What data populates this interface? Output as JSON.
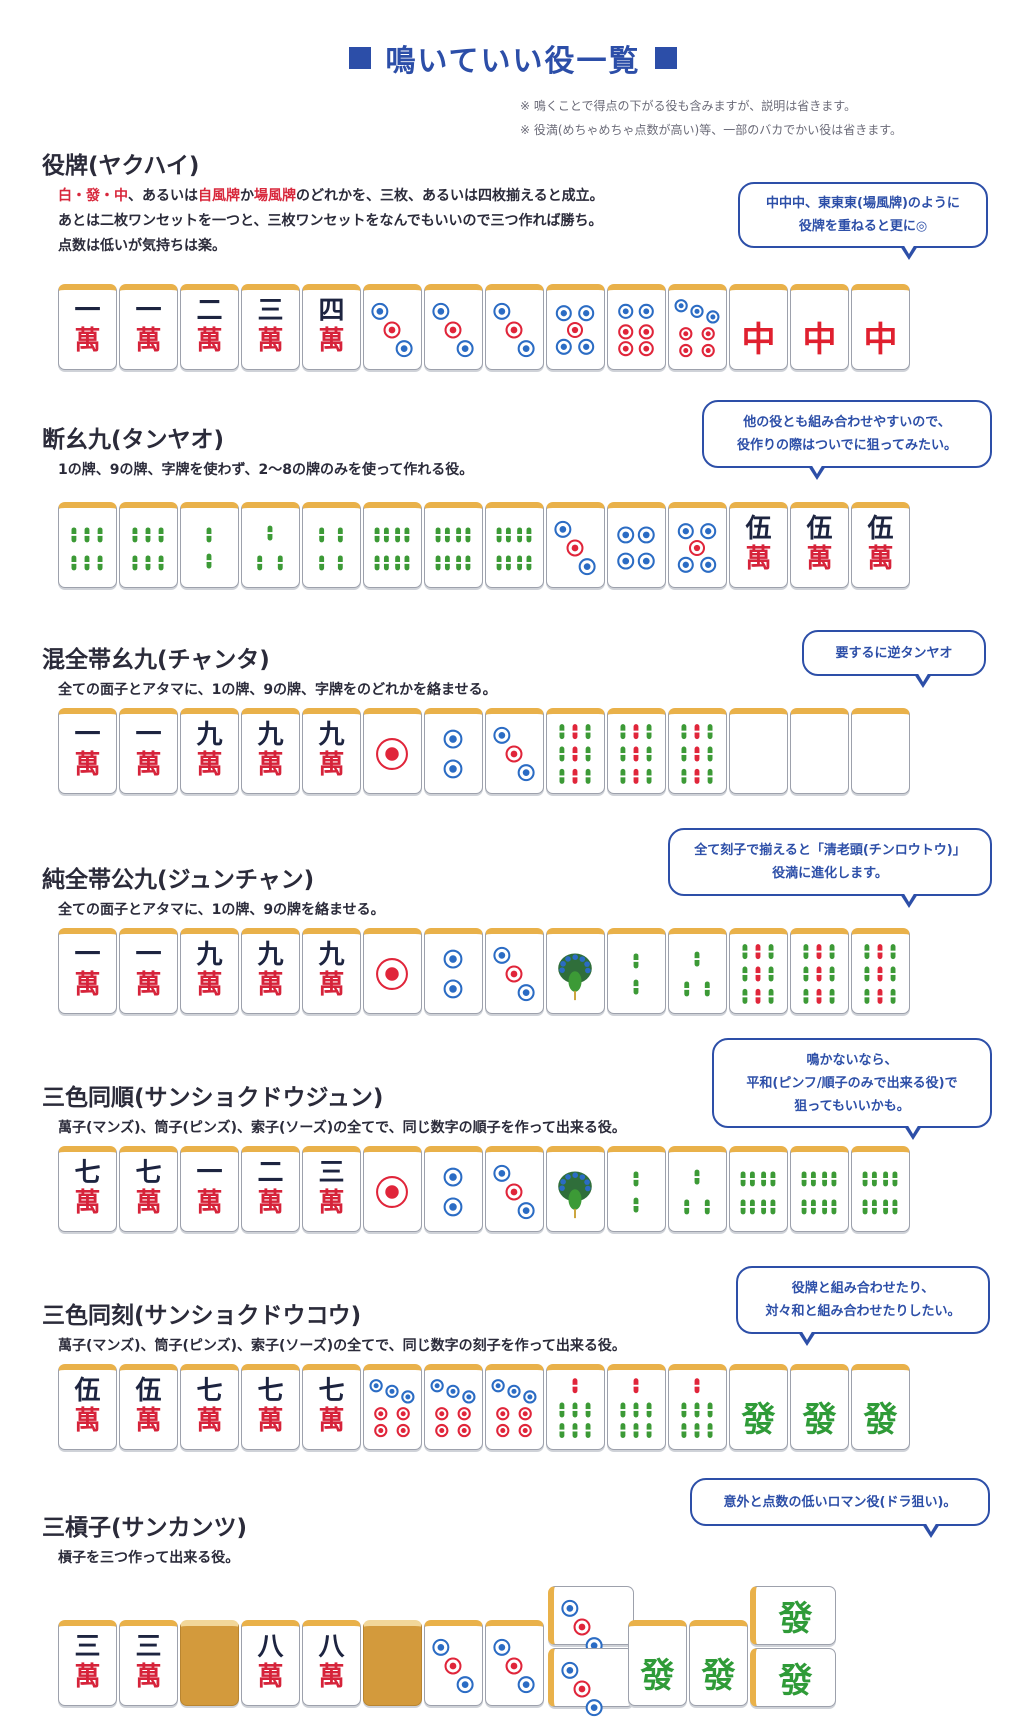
{
  "page": {
    "title": "鳴いていい役一覧",
    "notes": [
      "※ 鳴くことで得点の下がる役も含みますが、説明は省きます。",
      "※ 役満(めちゃめちゃ点数が高い)等、一部のバカでかい役は省きます。"
    ]
  },
  "sections": [
    {
      "title": "役牌(ヤクハイ)",
      "desc_line1_parts": [
        "白・發・中",
        "、あるいは",
        "自風牌",
        "か",
        "場風牌",
        "のどれかを、三枚、あるいは四枚揃えると成立。"
      ],
      "desc_line2": "あとは二枚ワンセットを一つと、三枚ワンセットをなんでもいいので三つ作れば勝ち。",
      "desc_line3": "点数は低いが気持ちは楽。",
      "bubble": [
        "中中中、東東東(場風牌)のように",
        "役牌を重ねると更に◎"
      ],
      "tiles": [
        "m1",
        "m1",
        "m2",
        "m3",
        "m4",
        "p3",
        "p3",
        "p3",
        "p5",
        "p6",
        "p7",
        "chun",
        "chun",
        "chun"
      ]
    },
    {
      "title": "断幺九(タンヤオ)",
      "desc": "1の牌、9の牌、字牌を使わず、2〜8の牌のみを使って作れる役。",
      "bubble": [
        "他の役とも組み合わせやすいので、",
        "役作りの際はついでに狙ってみたい。"
      ],
      "tiles": [
        "s6",
        "s6",
        "s2",
        "s3",
        "s4",
        "s8",
        "s8",
        "s8",
        "p3",
        "p4",
        "p5",
        "m5",
        "m5",
        "m5"
      ]
    },
    {
      "title": "混全帯幺九(チャンタ)",
      "desc": "全ての面子とアタマに、1の牌、9の牌、字牌をのどれかを絡ませる。",
      "bubble": [
        "要するに逆タンヤオ"
      ],
      "tiles": [
        "m1",
        "m1",
        "m9",
        "m9",
        "m9",
        "p1",
        "p2",
        "p3",
        "s9",
        "s9",
        "s9",
        "blank",
        "blank",
        "blank"
      ]
    },
    {
      "title": "純全帯公九(ジュンチャン)",
      "desc": "全ての面子とアタマに、1の牌、9の牌を絡ませる。",
      "bubble": [
        "全て刻子で揃えると「清老頭(チンロウトウ)」",
        "役満に進化します。"
      ],
      "tiles": [
        "m1",
        "m1",
        "m9",
        "m9",
        "m9",
        "p1",
        "p2",
        "p3",
        "s1",
        "s2",
        "s3",
        "s9",
        "s9",
        "s9"
      ]
    },
    {
      "title": "三色同順(サンショクドウジュン)",
      "desc": "萬子(マンズ)、筒子(ピンズ)、索子(ソーズ)の全てで、同じ数字の順子を作って出来る役。",
      "bubble": [
        "鳴かないなら、",
        "平和(ピンフ/順子のみで出来る役)で",
        "狙ってもいいかも。"
      ],
      "tiles": [
        "m7",
        "m7",
        "m1",
        "m2",
        "m3",
        "p1",
        "p2",
        "p3",
        "s1",
        "s2",
        "s3",
        "s8",
        "s8",
        "s8"
      ]
    },
    {
      "title": "三色同刻(サンショクドウコウ)",
      "desc": "萬子(マンズ)、筒子(ピンズ)、索子(ソーズ)の全てで、同じ数字の刻子を作って出来る役。",
      "bubble": [
        "役牌と組み合わせたり、",
        "対々和と組み合わせたりしたい。"
      ],
      "tiles": [
        "m5",
        "m5",
        "m7",
        "m7",
        "m7",
        "p7",
        "p7",
        "p7",
        "s7",
        "s7",
        "s7",
        "hatsu",
        "hatsu",
        "hatsu"
      ]
    },
    {
      "title": "三槓子(サンカンツ)",
      "desc": "槓子を三つ作って出来る役。",
      "bubble": [
        "意外と点数の低いロマン役(ドラ狙い)。"
      ],
      "tiles": [
        "m3",
        "m3",
        "back",
        "m8",
        "m8",
        "back",
        "p3",
        "p3",
        "p3s",
        "p3s",
        "hatsu",
        "hatsu",
        "hatsu",
        "hatsus"
      ]
    }
  ],
  "tile_text": {
    "wan_kanji": "萬",
    "numerals": {
      "1": "一",
      "2": "二",
      "3": "三",
      "4": "四",
      "5": "伍",
      "7": "七",
      "8": "八",
      "9": "九"
    },
    "chun": "中",
    "hatsu": "發"
  },
  "colors": {
    "title_blue": "#2c4ea8",
    "bubble_blue": "#2d4fa8",
    "red": "#d6233a",
    "green": "#3c9a36",
    "tile_top": "#e9b14a"
  }
}
